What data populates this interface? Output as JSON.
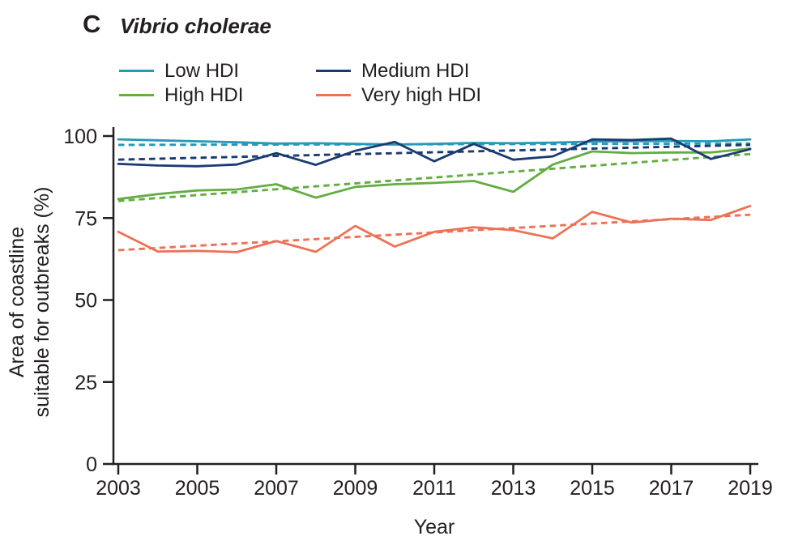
{
  "panel": {
    "letter": "C",
    "title": "Vibrio cholerae"
  },
  "axis_color": "#231f20",
  "chart_data": {
    "type": "line",
    "title": "Vibrio cholerae",
    "xlabel": "Year",
    "ylabel_line1": "Area of coastline",
    "ylabel_line2": "suitable for outbreaks (%)",
    "x_range": [
      2003,
      2019
    ],
    "ylim": [
      0,
      100
    ],
    "y_ticks": [
      0,
      25,
      50,
      75,
      100
    ],
    "x_ticks": [
      2003,
      2005,
      2007,
      2009,
      2011,
      2013,
      2015,
      2017,
      2019
    ],
    "x": [
      2003,
      2004,
      2005,
      2006,
      2007,
      2008,
      2009,
      2010,
      2011,
      2012,
      2013,
      2014,
      2015,
      2016,
      2017,
      2018,
      2019
    ],
    "legend_position": "top-left",
    "grid": false,
    "series": [
      {
        "name": "Low HDI",
        "color": "#2599b5",
        "style": "solid-with-dashed-trend",
        "values": [
          99.0,
          98.7,
          98.4,
          98.1,
          97.7,
          97.8,
          97.6,
          97.4,
          97.6,
          97.9,
          97.8,
          98.0,
          98.3,
          98.4,
          98.5,
          98.4,
          99.0
        ],
        "trend": {
          "start": 97.3,
          "end": 97.7
        }
      },
      {
        "name": "Medium HDI",
        "color": "#1a3a72",
        "style": "solid-with-dashed-trend",
        "values": [
          91.5,
          91.0,
          90.8,
          91.3,
          94.8,
          91.2,
          95.5,
          98.2,
          92.3,
          97.6,
          92.8,
          93.8,
          99.0,
          98.8,
          99.2,
          93.0,
          96.0
        ],
        "trend": {
          "start": 92.8,
          "end": 97.3
        }
      },
      {
        "name": "High HDI",
        "color": "#64ad43",
        "style": "solid-with-dashed-trend",
        "values": [
          80.8,
          82.3,
          83.4,
          83.7,
          85.3,
          81.2,
          84.5,
          85.3,
          85.7,
          86.3,
          83.0,
          91.3,
          95.3,
          94.8,
          95.0,
          95.0,
          96.2
        ],
        "trend": {
          "start": 80.2,
          "end": 94.5
        }
      },
      {
        "name": "Very high HDI",
        "color": "#ec7156",
        "style": "solid-with-dashed-trend",
        "values": [
          70.8,
          64.8,
          65.0,
          64.6,
          68.0,
          64.7,
          72.6,
          66.3,
          70.8,
          72.2,
          71.3,
          68.8,
          76.9,
          73.6,
          74.8,
          74.4,
          78.7
        ],
        "trend": {
          "start": 65.2,
          "end": 76.0
        }
      }
    ]
  }
}
